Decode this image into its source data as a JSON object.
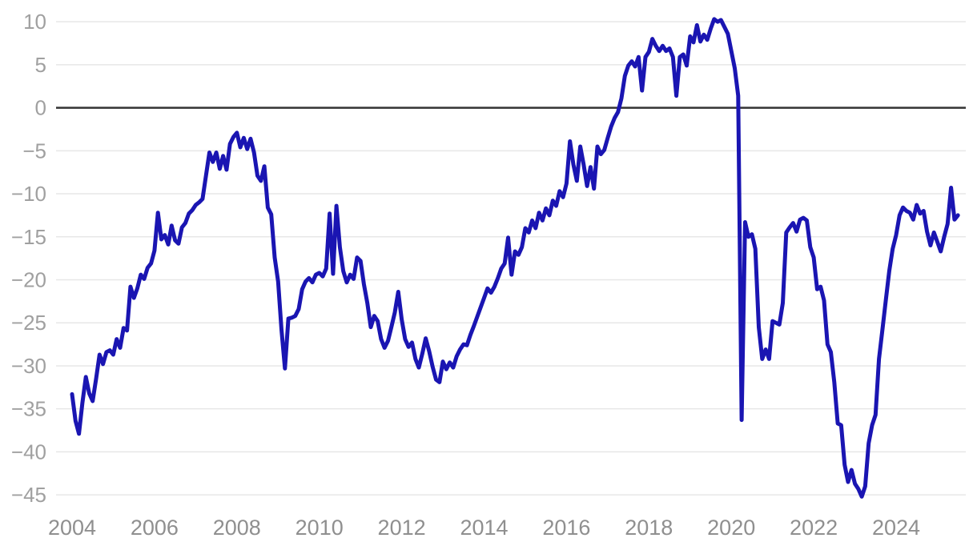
{
  "chart_data": {
    "type": "line",
    "title": "",
    "xlabel": "",
    "ylabel": "",
    "x_start": "2004-01",
    "x_end": "2025-07",
    "frequency": "monthly",
    "grid": "horizontal",
    "zero_line": true,
    "legend": "none",
    "ylim": [
      -45,
      10
    ],
    "y_ticks": [
      10,
      5,
      0,
      -5,
      -10,
      -15,
      -20,
      -25,
      -30,
      -35,
      -40,
      -45
    ],
    "y_tick_labels": [
      "10",
      "5",
      "0",
      "−5",
      "−10",
      "−15",
      "−20",
      "−25",
      "−30",
      "−35",
      "−40",
      "−45"
    ],
    "x_tick_years": [
      2004,
      2006,
      2008,
      2010,
      2012,
      2014,
      2016,
      2018,
      2020,
      2022,
      2024
    ],
    "x_tick_labels": [
      "2004",
      "2006",
      "2008",
      "2010",
      "2012",
      "2014",
      "2016",
      "2018",
      "2020",
      "2022",
      "2024"
    ],
    "colors": {
      "line": "#1a15b2",
      "grid": "#e7e7e7",
      "zero_line": "#333333",
      "y_tick_text": "#a0a0a0",
      "x_tick_text": "#8f8f8f",
      "background": "#ffffff"
    },
    "series": [
      {
        "name": "index",
        "color": "#1a15b2",
        "values": [
          -33.3,
          -36.4,
          -37.9,
          -34.3,
          -31.3,
          -33.2,
          -34.1,
          -31.5,
          -28.7,
          -29.8,
          -28.4,
          -28.2,
          -28.7,
          -26.9,
          -27.9,
          -25.6,
          -25.9,
          -20.8,
          -22.1,
          -21.0,
          -19.4,
          -19.9,
          -18.6,
          -18.1,
          -16.6,
          -12.2,
          -15.3,
          -14.8,
          -15.9,
          -13.7,
          -15.4,
          -15.8,
          -13.9,
          -13.4,
          -12.3,
          -11.9,
          -11.3,
          -11.0,
          -10.6,
          -7.9,
          -5.2,
          -6.3,
          -5.2,
          -7.1,
          -5.6,
          -7.2,
          -4.2,
          -3.4,
          -2.9,
          -4.6,
          -3.5,
          -4.8,
          -3.6,
          -5.2,
          -7.9,
          -8.5,
          -6.8,
          -11.6,
          -12.4,
          -17.4,
          -20.2,
          -25.8,
          -30.3,
          -24.5,
          -24.4,
          -24.2,
          -23.4,
          -21.1,
          -20.2,
          -19.8,
          -20.3,
          -19.4,
          -19.2,
          -19.6,
          -18.7,
          -12.3,
          -19.3,
          -11.4,
          -16.2,
          -19.0,
          -20.3,
          -19.4,
          -19.9,
          -17.4,
          -17.8,
          -20.5,
          -22.7,
          -25.5,
          -24.2,
          -24.8,
          -26.9,
          -27.9,
          -27.1,
          -25.5,
          -23.8,
          -21.4,
          -24.6,
          -26.9,
          -27.8,
          -27.3,
          -29.2,
          -30.2,
          -28.6,
          -26.8,
          -28.3,
          -30.1,
          -31.6,
          -31.9,
          -29.5,
          -30.4,
          -29.6,
          -30.2,
          -28.9,
          -28.1,
          -27.5,
          -27.6,
          -26.4,
          -25.4,
          -24.3,
          -23.2,
          -22.1,
          -21.0,
          -21.5,
          -20.8,
          -19.8,
          -18.7,
          -18.1,
          -15.1,
          -19.4,
          -16.7,
          -17.1,
          -16.2,
          -14.0,
          -14.5,
          -13.1,
          -14.0,
          -12.2,
          -13.1,
          -11.7,
          -12.5,
          -10.8,
          -11.4,
          -9.7,
          -10.4,
          -8.8,
          -3.9,
          -6.6,
          -8.5,
          -4.5,
          -6.6,
          -9.1,
          -6.9,
          -9.4,
          -4.5,
          -5.4,
          -4.9,
          -3.5,
          -2.2,
          -1.2,
          -0.5,
          1.1,
          3.7,
          4.9,
          5.4,
          4.8,
          5.9,
          2.0,
          5.9,
          6.5,
          8.0,
          7.2,
          6.6,
          7.2,
          6.6,
          6.9,
          5.9,
          1.4,
          5.9,
          6.2,
          4.9,
          8.3,
          7.6,
          9.6,
          7.7,
          8.5,
          7.9,
          9.2,
          10.3,
          10.0,
          10.2,
          9.4,
          8.6,
          6.6,
          4.6,
          1.4,
          -36.3,
          -13.3,
          -15.0,
          -14.7,
          -16.4,
          -25.5,
          -29.2,
          -28.1,
          -29.2,
          -24.8,
          -25.0,
          -25.2,
          -22.7,
          -14.5,
          -13.9,
          -13.4,
          -14.4,
          -13.0,
          -12.8,
          -13.1,
          -16.2,
          -17.4,
          -21.1,
          -20.8,
          -22.4,
          -27.5,
          -28.4,
          -31.9,
          -36.7,
          -36.9,
          -41.5,
          -43.5,
          -42.1,
          -43.7,
          -44.3,
          -45.2,
          -44.0,
          -39.0,
          -36.9,
          -35.7,
          -29.2,
          -25.8,
          -22.4,
          -19.0,
          -16.4,
          -14.8,
          -12.5,
          -11.6,
          -12.0,
          -12.2,
          -13.0,
          -11.3,
          -12.3,
          -12.0,
          -14.4,
          -16.0,
          -14.5,
          -15.6,
          -16.7,
          -15.0,
          -13.5,
          -9.3,
          -13.0,
          -12.5
        ]
      }
    ]
  }
}
